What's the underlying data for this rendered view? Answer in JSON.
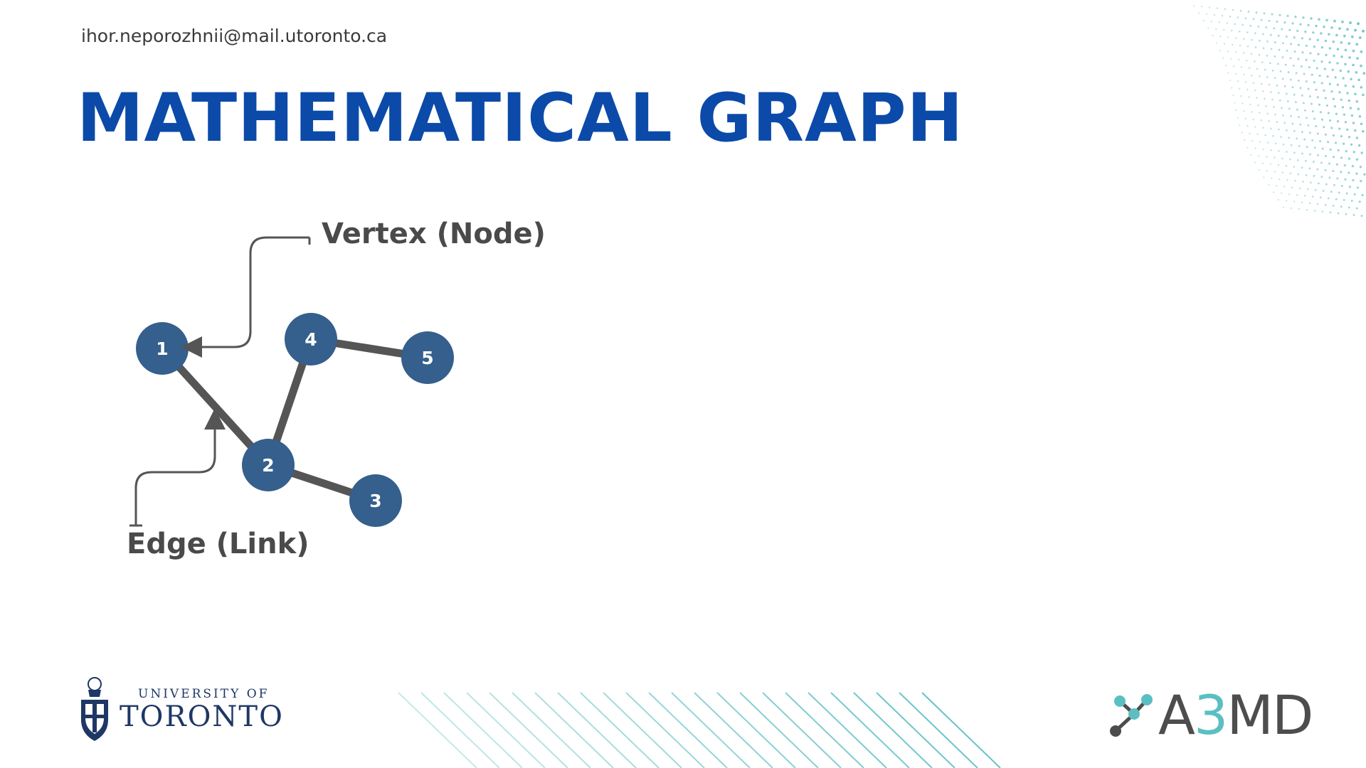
{
  "header": {
    "email": "ihor.neporozhnii@mail.utoronto.ca",
    "title": "MATHEMATICAL GRAPH"
  },
  "diagram": {
    "nodes": [
      {
        "id": "1",
        "label": "1"
      },
      {
        "id": "2",
        "label": "2"
      },
      {
        "id": "3",
        "label": "3"
      },
      {
        "id": "4",
        "label": "4"
      },
      {
        "id": "5",
        "label": "5"
      }
    ],
    "edges": [
      [
        "1",
        "2"
      ],
      [
        "2",
        "3"
      ],
      [
        "2",
        "4"
      ],
      [
        "4",
        "5"
      ]
    ],
    "callouts": {
      "vertex": "Vertex (Node)",
      "edge": "Edge (Link)"
    },
    "colors": {
      "node_fill": "#355f8c",
      "edge": "#555555",
      "callout_text": "#4a4a4a"
    }
  },
  "footer": {
    "university_line1": "UNIVERSITY OF",
    "university_line2": "TORONTO",
    "logo_prefix": "A",
    "logo_number": "3",
    "logo_suffix": "MD",
    "logo_icon": "molecule-icon",
    "crest_icon": "university-crest-icon"
  },
  "colors": {
    "title": "#0b4aa8",
    "accent_teal": "#5bbfc2",
    "uoft_navy": "#1e3765"
  }
}
